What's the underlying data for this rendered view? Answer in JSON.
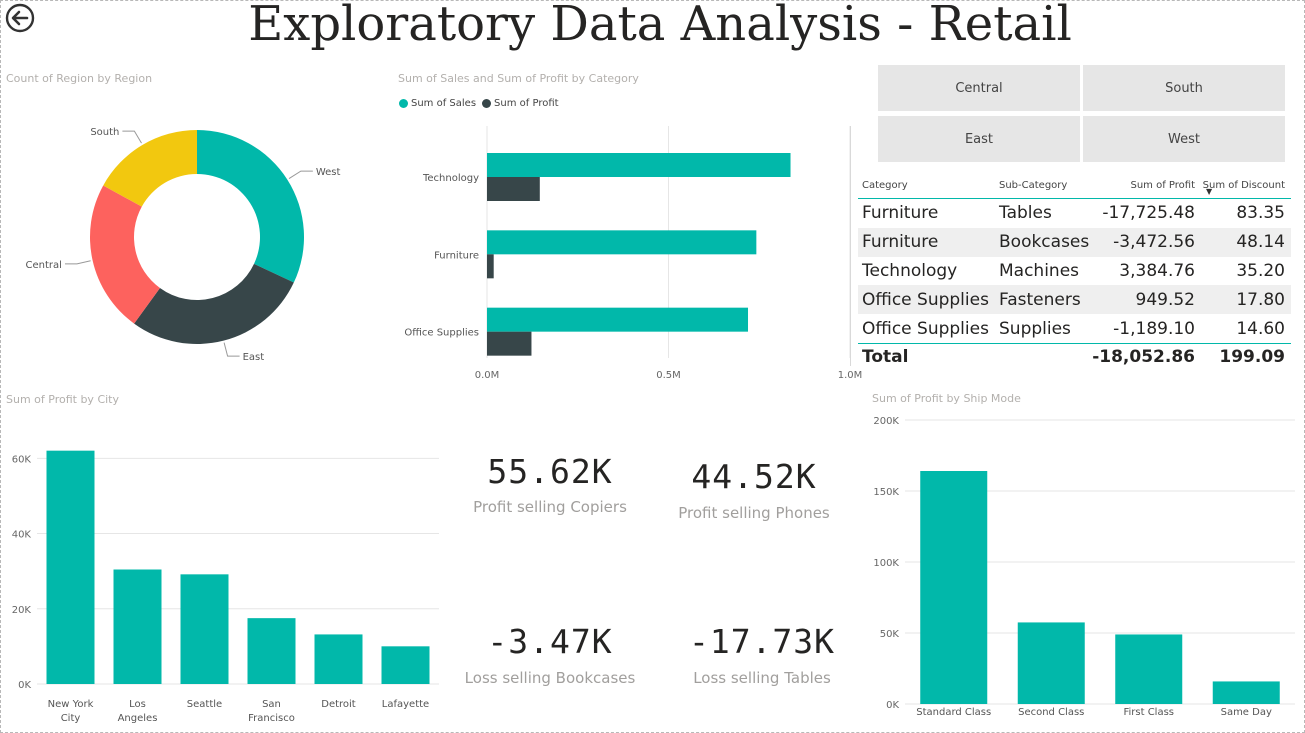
{
  "header": {
    "title": "Exploratory Data Analysis - Retail",
    "back_icon": "back-arrow-circle-icon"
  },
  "donut": {
    "title": "Count of Region by Region",
    "chart_data": {
      "type": "pie",
      "title": "Count of Region by Region",
      "categories": [
        "West",
        "East",
        "Central",
        "South"
      ],
      "values": [
        32,
        28,
        23,
        17
      ],
      "colors": [
        "#01b8aa",
        "#374649",
        "#fd625e",
        "#f2c80f"
      ]
    }
  },
  "bar_category": {
    "title": "Sum of Sales and Sum of Profit by Category",
    "chart_data": {
      "type": "bar",
      "orientation": "horizontal",
      "title": "Sum of Sales and Sum of Profit by Category",
      "categories": [
        "Technology",
        "Furniture",
        "Office Supplies"
      ],
      "series": [
        {
          "name": "Sum of Sales",
          "values": [
            836154,
            741999,
            719047
          ],
          "color": "#01b8aa"
        },
        {
          "name": "Sum of Profit",
          "values": [
            145455,
            18451,
            122491
          ],
          "color": "#374649"
        }
      ],
      "xlim": [
        0,
        1000000
      ],
      "xticks": [
        "0.0M",
        "0.5M",
        "1.0M"
      ],
      "legend": "top-left"
    }
  },
  "slicer": {
    "items": [
      "Central",
      "South",
      "East",
      "West"
    ]
  },
  "table": {
    "headers": [
      "Category",
      "Sub-Category",
      "Sum of Profit",
      "Sum of Discount"
    ],
    "rows": [
      [
        "Furniture",
        "Tables",
        "-17,725.48",
        "83.35"
      ],
      [
        "Furniture",
        "Bookcases",
        "-3,472.56",
        "48.14"
      ],
      [
        "Technology",
        "Machines",
        "3,384.76",
        "35.20"
      ],
      [
        "Office Supplies",
        "Fasteners",
        "949.52",
        "17.80"
      ],
      [
        "Office Supplies",
        "Supplies",
        "-1,189.10",
        "14.60"
      ]
    ],
    "total": {
      "label": "Total",
      "profit": "-18,052.86",
      "discount": "199.09"
    }
  },
  "city_chart": {
    "title": "Sum of Profit by City",
    "chart_data": {
      "type": "bar",
      "title": "Sum of Profit by City",
      "categories": [
        [
          "New York",
          "City"
        ],
        [
          "Los",
          "Angeles"
        ],
        [
          "Seattle"
        ],
        [
          "San",
          "Francisco"
        ],
        [
          "Detroit"
        ],
        [
          "Lafayette"
        ]
      ],
      "values": [
        62037,
        30441,
        29156,
        17507,
        13181,
        10018
      ],
      "ylim": [
        0,
        67000
      ],
      "yticks": [
        0,
        20000,
        40000,
        60000
      ],
      "ytick_labels": [
        "0K",
        "20K",
        "40K",
        "60K"
      ],
      "color": "#01b8aa"
    }
  },
  "cards": [
    {
      "value": "55.62K",
      "label": "Profit selling Copiers"
    },
    {
      "value": "44.52K",
      "label": "Profit selling Phones"
    },
    {
      "value": "-3.47K",
      "label": "Loss selling Bookcases"
    },
    {
      "value": "-17.73K",
      "label": "Loss selling Tables"
    }
  ],
  "shipmode_chart": {
    "title": "Sum of Profit by Ship Mode",
    "chart_data": {
      "type": "bar",
      "title": "Sum of Profit by Ship Mode",
      "categories": [
        "Standard Class",
        "Second Class",
        "First Class",
        "Same Day"
      ],
      "values": [
        164089,
        57447,
        48970,
        15892
      ],
      "ylim": [
        0,
        200000
      ],
      "yticks": [
        0,
        50000,
        100000,
        150000,
        200000
      ],
      "ytick_labels": [
        "0K",
        "50K",
        "100K",
        "150K",
        "200K"
      ],
      "color": "#01b8aa"
    }
  }
}
